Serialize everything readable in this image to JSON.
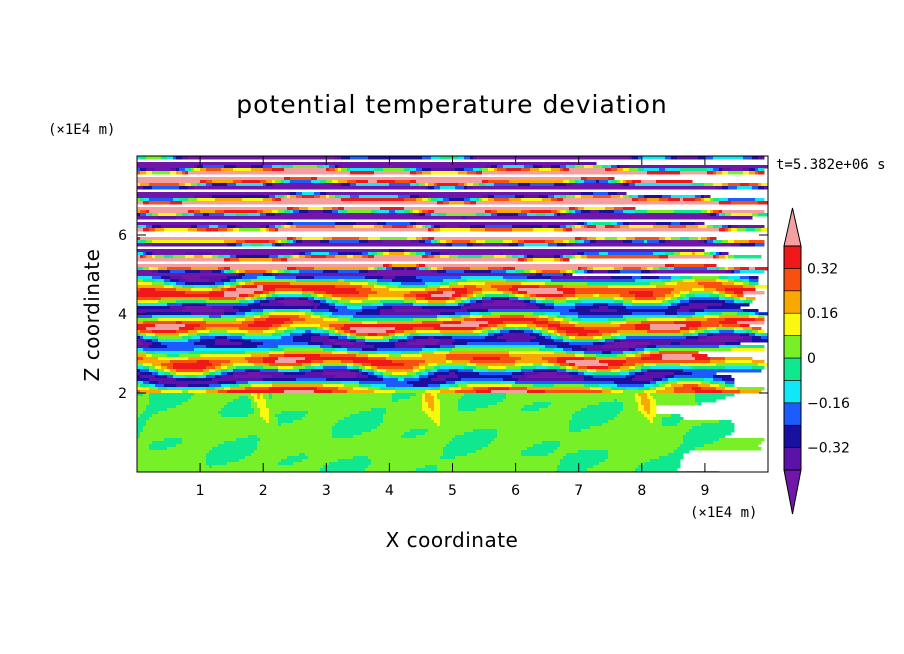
{
  "chart_data": {
    "type": "heatmap",
    "title": "potential temperature deviation",
    "xlabel": "X coordinate",
    "ylabel": "Z coordinate",
    "x_unit": "(×1E4 m)",
    "z_unit": "(×1E4 m)",
    "time_label": "t=5.382e+06 s",
    "xlim": [
      0,
      10
    ],
    "ylim": [
      0,
      8
    ],
    "x_ticks": [
      "1",
      "2",
      "3",
      "4",
      "5",
      "6",
      "7",
      "8",
      "9"
    ],
    "y_ticks": [
      "2",
      "4",
      "6"
    ],
    "colorbar": {
      "ticks": [
        "0.32",
        "0.16",
        "0",
        "−0.16",
        "−0.32"
      ],
      "levels": [
        -0.4,
        -0.32,
        -0.24,
        -0.16,
        -0.08,
        0,
        0.08,
        0.16,
        0.24,
        0.32,
        0.4
      ],
      "colors": [
        "#5a12a8",
        "#1a10a0",
        "#1c5cff",
        "#10e8f8",
        "#10e890",
        "#78f028",
        "#f8f810",
        "#f8a800",
        "#f85010",
        "#f01818"
      ],
      "under_color": "#7016a8",
      "over_color": "#f4a0a0"
    },
    "regions": {
      "lower_layer_top_z": 2.0,
      "banded_layer_top_z": 5.0
    }
  }
}
